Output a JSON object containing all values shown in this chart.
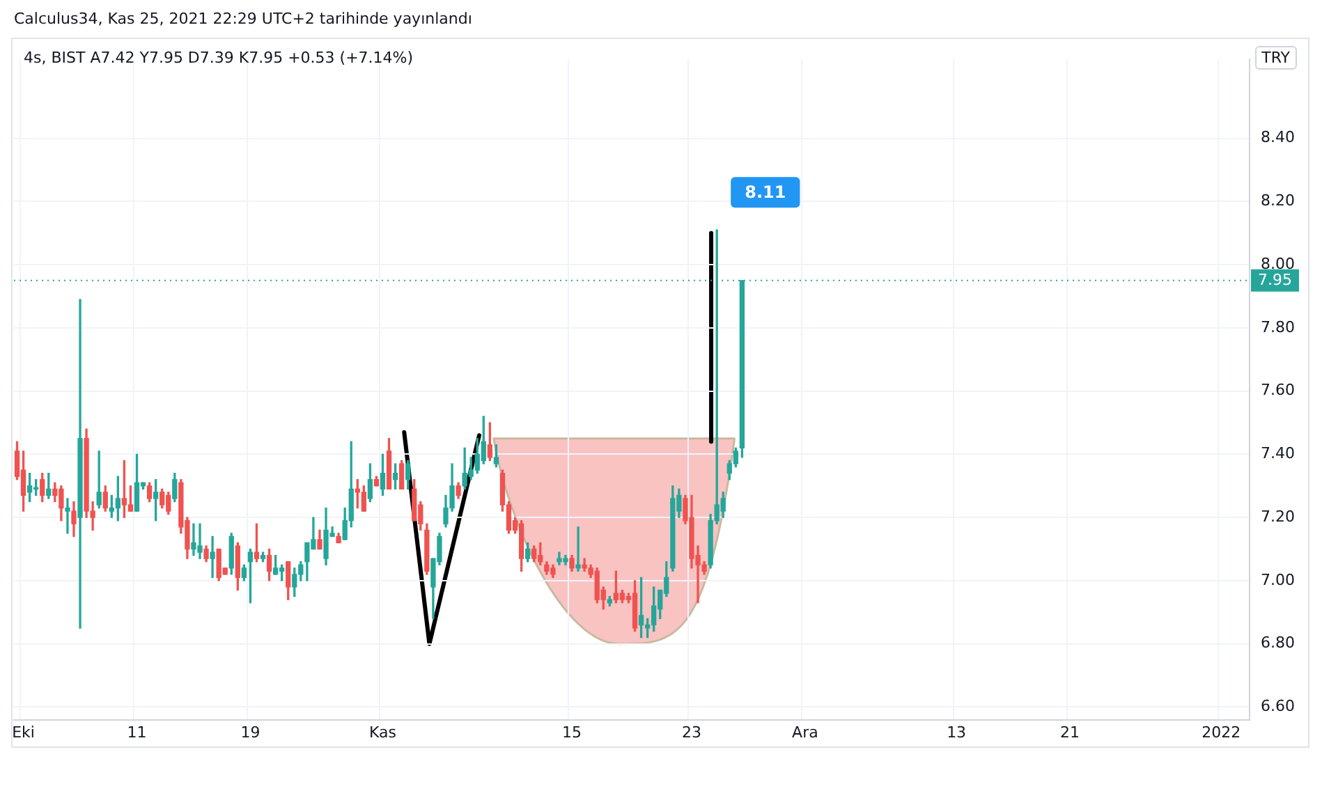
{
  "chart_data": {
    "type": "candlestick",
    "title": "Calculus34, Kas 25, 2021 22:29 UTC+2 tarihinde yayınlandı",
    "subtitle": "4s, BIST  A7.42  Y7.95  D7.39  K7.95  +0.53 (+7.14%)",
    "annotations": [
      "TRY",
      "8.11"
    ],
    "categories": [
      null,
      "Eki",
      null,
      null,
      null,
      null,
      null,
      null,
      null,
      null,
      null,
      null,
      null,
      null,
      null,
      null,
      null,
      null,
      null,
      "11",
      null,
      null,
      null,
      null,
      null,
      null,
      null,
      null,
      null,
      null,
      null,
      null,
      null,
      null,
      null,
      null,
      null,
      "19",
      null,
      null,
      null,
      null,
      null,
      null,
      null,
      null,
      null,
      null,
      null,
      null,
      null,
      null,
      null,
      null,
      null,
      null,
      null,
      null,
      "Kas",
      null,
      null,
      null,
      null,
      null,
      null,
      null,
      null,
      null,
      null,
      null,
      null,
      null,
      null,
      null,
      null,
      null,
      null,
      null,
      null,
      null,
      null,
      null,
      null,
      null,
      null,
      null,
      null,
      null,
      "15",
      null,
      null,
      null,
      null,
      null,
      null,
      null,
      null,
      null,
      null,
      null,
      null,
      null,
      null,
      null,
      null,
      null,
      null,
      "23",
      null,
      null,
      null,
      null,
      null,
      null,
      null,
      null,
      null,
      null,
      null,
      null,
      null,
      null,
      null,
      null,
      null,
      "Ara",
      null,
      null,
      null,
      null,
      null,
      null,
      null,
      null,
      null,
      null,
      null,
      null,
      null,
      null,
      null,
      null,
      null,
      null,
      null,
      null,
      null,
      null,
      null,
      "13",
      null,
      null,
      null,
      null,
      null,
      null,
      null,
      null,
      null,
      null,
      null,
      null,
      null,
      null,
      null,
      null,
      null,
      "21",
      null,
      null,
      null,
      null,
      null,
      null,
      null,
      null,
      null,
      null,
      null,
      null,
      null,
      null,
      null,
      null,
      null,
      null,
      null,
      null,
      null,
      null,
      null,
      "2022",
      null,
      null,
      null,
      null
    ],
    "ohlc": [
      [
        7.41,
        7.44,
        7.32,
        7.33
      ],
      [
        7.35,
        7.41,
        7.22,
        7.27
      ],
      [
        7.28,
        7.34,
        7.25,
        7.3
      ],
      [
        7.29,
        7.32,
        7.27,
        7.29
      ],
      [
        7.32,
        7.34,
        7.25,
        7.27
      ],
      [
        7.27,
        7.34,
        7.26,
        7.29
      ],
      [
        7.29,
        7.31,
        7.25,
        7.27
      ],
      [
        7.29,
        7.3,
        7.19,
        7.23
      ],
      [
        7.22,
        7.26,
        7.15,
        7.23
      ],
      [
        7.22,
        7.25,
        7.14,
        7.18
      ],
      [
        7.2,
        7.89,
        6.85,
        7.45
      ],
      [
        7.45,
        7.48,
        7.2,
        7.22
      ],
      [
        7.22,
        7.25,
        7.16,
        7.2
      ],
      [
        7.24,
        7.41,
        7.23,
        7.28
      ],
      [
        7.28,
        7.3,
        7.22,
        7.23
      ],
      [
        7.22,
        7.27,
        7.2,
        7.23
      ],
      [
        7.23,
        7.33,
        7.19,
        7.26
      ],
      [
        7.26,
        7.38,
        7.2,
        7.24
      ],
      [
        7.24,
        7.3,
        7.22,
        7.22
      ],
      [
        7.22,
        7.4,
        7.22,
        7.31
      ],
      [
        7.3,
        7.31,
        7.29,
        7.31
      ],
      [
        7.3,
        7.31,
        7.25,
        7.26
      ],
      [
        7.26,
        7.32,
        7.19,
        7.28
      ],
      [
        7.28,
        7.29,
        7.23,
        7.24
      ],
      [
        7.27,
        7.28,
        7.21,
        7.22
      ],
      [
        7.26,
        7.34,
        7.25,
        7.32
      ],
      [
        7.31,
        7.32,
        7.15,
        7.17
      ],
      [
        7.19,
        7.2,
        7.07,
        7.1
      ],
      [
        7.1,
        7.18,
        7.08,
        7.12
      ],
      [
        7.09,
        7.18,
        7.07,
        7.11
      ],
      [
        7.1,
        7.11,
        7.06,
        7.07
      ],
      [
        7.07,
        7.14,
        7.01,
        7.09
      ],
      [
        7.1,
        7.1,
        7.0,
        7.01
      ],
      [
        7.04,
        7.04,
        7.02,
        7.02
      ],
      [
        7.04,
        7.15,
        7.02,
        7.14
      ],
      [
        7.11,
        7.12,
        6.97,
        7.01
      ],
      [
        7.01,
        7.05,
        7.0,
        7.04
      ],
      [
        7.06,
        7.1,
        6.93,
        7.09
      ],
      [
        7.09,
        7.18,
        7.06,
        7.07
      ],
      [
        7.07,
        7.09,
        7.06,
        7.08
      ],
      [
        7.08,
        7.1,
        7.0,
        7.03
      ],
      [
        7.02,
        7.08,
        7.02,
        7.04
      ],
      [
        7.03,
        7.05,
        7.0,
        7.04
      ],
      [
        7.06,
        7.06,
        6.94,
        6.98
      ],
      [
        6.98,
        7.04,
        6.95,
        7.02
      ],
      [
        7.02,
        7.06,
        7.0,
        7.05
      ],
      [
        7.06,
        7.12,
        7.0,
        7.12
      ],
      [
        7.1,
        7.2,
        7.1,
        7.13
      ],
      [
        7.13,
        7.16,
        7.1,
        7.1
      ],
      [
        7.07,
        7.23,
        7.05,
        7.16
      ],
      [
        7.14,
        7.17,
        7.14,
        7.15
      ],
      [
        7.14,
        7.15,
        7.12,
        7.12
      ],
      [
        7.13,
        7.23,
        7.13,
        7.19
      ],
      [
        7.19,
        7.44,
        7.17,
        7.29
      ],
      [
        7.29,
        7.32,
        7.23,
        7.28
      ],
      [
        7.28,
        7.3,
        7.22,
        7.22
      ],
      [
        7.26,
        7.37,
        7.25,
        7.32
      ],
      [
        7.32,
        7.33,
        7.3,
        7.3
      ],
      [
        7.29,
        7.4,
        7.27,
        7.34
      ],
      [
        7.41,
        7.45,
        7.29,
        7.29
      ],
      [
        7.32,
        7.37,
        7.29,
        7.34
      ],
      [
        7.37,
        7.38,
        7.29,
        7.29
      ],
      [
        7.32,
        7.38,
        7.29,
        7.37
      ],
      [
        7.29,
        7.32,
        7.19,
        7.19
      ],
      [
        7.24,
        7.25,
        7.16,
        7.18
      ],
      [
        7.16,
        7.18,
        7.02,
        7.03
      ],
      [
        6.98,
        7.07,
        6.88,
        7.07
      ],
      [
        7.06,
        7.15,
        7.05,
        7.14
      ],
      [
        7.18,
        7.27,
        7.17,
        7.23
      ],
      [
        7.23,
        7.37,
        7.22,
        7.3
      ],
      [
        7.3,
        7.31,
        7.26,
        7.27
      ],
      [
        7.3,
        7.42,
        7.29,
        7.34
      ],
      [
        7.33,
        7.39,
        7.32,
        7.35
      ],
      [
        7.35,
        7.45,
        7.34,
        7.4
      ],
      [
        7.38,
        7.52,
        7.37,
        7.44
      ],
      [
        7.43,
        7.5,
        7.38,
        7.39
      ],
      [
        7.37,
        7.43,
        7.36,
        7.39
      ],
      [
        7.34,
        7.35,
        7.22,
        7.24
      ],
      [
        7.24,
        7.25,
        7.15,
        7.16
      ],
      [
        7.19,
        7.2,
        7.15,
        7.16
      ],
      [
        7.18,
        7.19,
        7.03,
        7.07
      ],
      [
        7.07,
        7.12,
        7.06,
        7.1
      ],
      [
        7.1,
        7.11,
        7.06,
        7.07
      ],
      [
        7.08,
        7.12,
        7.05,
        7.06
      ],
      [
        7.05,
        7.06,
        7.02,
        7.03
      ],
      [
        7.04,
        7.05,
        7.01,
        7.02
      ],
      [
        7.06,
        7.09,
        7.05,
        7.07
      ],
      [
        7.06,
        7.08,
        7.05,
        7.07
      ],
      [
        7.07,
        7.08,
        7.03,
        7.04
      ],
      [
        7.04,
        7.17,
        7.03,
        7.05
      ],
      [
        7.05,
        7.07,
        7.03,
        7.04
      ],
      [
        7.04,
        7.05,
        7.01,
        7.02
      ],
      [
        7.03,
        7.04,
        6.93,
        6.94
      ],
      [
        6.97,
        6.98,
        6.91,
        6.94
      ],
      [
        6.93,
        6.95,
        6.92,
        6.94
      ],
      [
        6.96,
        7.03,
        6.93,
        6.94
      ],
      [
        6.96,
        6.97,
        6.93,
        6.94
      ],
      [
        6.95,
        6.96,
        6.93,
        6.94
      ],
      [
        6.96,
        7.0,
        6.84,
        6.85
      ],
      [
        6.86,
        7.01,
        6.82,
        6.89
      ],
      [
        6.85,
        6.88,
        6.82,
        6.86
      ],
      [
        6.86,
        6.98,
        6.84,
        6.92
      ],
      [
        6.91,
        6.97,
        6.88,
        6.97
      ],
      [
        6.96,
        7.06,
        6.95,
        7.01
      ],
      [
        7.04,
        7.3,
        7.03,
        7.26
      ],
      [
        7.22,
        7.29,
        7.2,
        7.27
      ],
      [
        7.26,
        7.27,
        7.18,
        7.19
      ],
      [
        7.2,
        7.27,
        7.04,
        7.07
      ],
      [
        7.08,
        7.11,
        6.93,
        7.05
      ],
      [
        7.05,
        7.06,
        7.02,
        7.03
      ],
      [
        7.05,
        7.21,
        7.04,
        7.19
      ],
      [
        7.19,
        8.11,
        7.18,
        7.24
      ],
      [
        7.22,
        7.28,
        7.2,
        7.26
      ],
      [
        7.34,
        7.38,
        7.32,
        7.37
      ],
      [
        7.37,
        7.42,
        7.36,
        7.41
      ],
      [
        7.42,
        7.95,
        7.39,
        7.95
      ],
      null,
      null,
      null,
      null,
      null,
      null,
      null,
      null,
      null,
      null,
      null,
      null,
      null,
      null,
      null,
      null,
      null,
      null,
      null,
      null,
      null,
      null,
      null,
      null,
      null,
      null,
      null,
      null,
      null,
      null,
      null,
      null,
      null,
      null,
      null,
      null,
      null,
      null,
      null,
      null,
      null,
      null,
      null,
      null,
      null,
      null,
      null,
      null,
      null,
      null,
      null,
      null,
      null,
      null,
      null,
      null,
      null,
      null,
      null,
      null,
      null,
      null,
      null,
      null,
      null,
      null,
      null,
      null,
      null,
      null,
      null,
      null,
      null,
      null,
      null,
      null,
      null,
      null,
      null,
      null
    ],
    "ylim": [
      6.56,
      8.65
    ],
    "yticks": [
      {
        "value": 6.6,
        "label": "6.60"
      },
      {
        "value": 6.8,
        "label": "6.80"
      },
      {
        "value": 7.0,
        "label": "7.00"
      },
      {
        "value": 7.2,
        "label": "7.20"
      },
      {
        "value": 7.4,
        "label": "7.40"
      },
      {
        "value": 7.6,
        "label": "7.60"
      },
      {
        "value": 7.8,
        "label": "7.80"
      },
      {
        "value": 8.0,
        "label": "8.00"
      },
      {
        "value": 8.2,
        "label": "8.20"
      },
      {
        "value": 8.4,
        "label": "8.40"
      }
    ],
    "ref_lines": [
      {
        "axis": "y",
        "value": 7.95,
        "label": "7.95",
        "color": "#26a69a",
        "line_style": "dotted"
      }
    ],
    "grid": true,
    "legend": false
  }
}
